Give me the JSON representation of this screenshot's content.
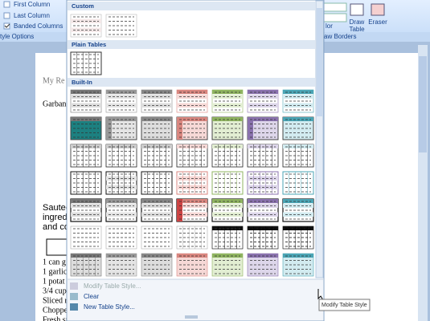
{
  "ribbon": {
    "options": [
      "First Column",
      "Last Column",
      "Banded Columns"
    ],
    "group_label": "tyle Options",
    "color_label": "lor",
    "draw_table": [
      "Draw",
      "Table"
    ],
    "eraser": "Eraser",
    "borders_label": "aw Borders"
  },
  "gallery": {
    "sections": [
      "Custom",
      "Plain Tables",
      "Built-In"
    ],
    "menu": [
      "Modify Table Style...",
      "Clear",
      "New Table Style..."
    ]
  },
  "tooltip": "Modify Table Style",
  "document": {
    "lines": [
      "My Re",
      "Garban",
      "Sauteed",
      "ingred",
      "and co",
      "1 can g",
      "1 garlic",
      "1 potat",
      "3/4 cup",
      "Sliced r",
      "Choppe",
      "Fresh spinach"
    ]
  }
}
